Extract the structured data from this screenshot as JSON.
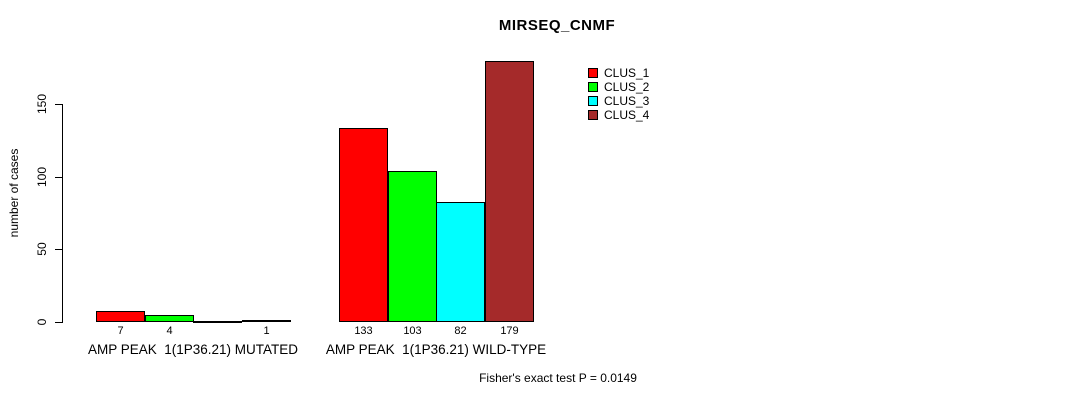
{
  "title": "MIRSEQ_CNMF",
  "footnote": "Fisher's exact test P = 0.0149",
  "chart_data": {
    "type": "bar",
    "title": "MIRSEQ_CNMF",
    "xlabel": "",
    "ylabel": "number of cases",
    "ylim": [
      0,
      180
    ],
    "yticks": [
      0,
      50,
      100,
      150
    ],
    "grid": false,
    "legend_position": "top-right",
    "categories": [
      "AMP PEAK  1(1P36.21) MUTATED",
      "AMP PEAK  1(1P36.21) WILD-TYPE"
    ],
    "series": [
      {
        "name": "CLUS_1",
        "color": "#ff0000",
        "values": [
          7,
          133
        ]
      },
      {
        "name": "CLUS_2",
        "color": "#00ff00",
        "values": [
          4,
          103
        ]
      },
      {
        "name": "CLUS_3",
        "color": "#00ffff",
        "values": [
          0,
          82
        ]
      },
      {
        "name": "CLUS_4",
        "color": "#a52a2a",
        "values": [
          1,
          179
        ]
      }
    ],
    "bar_value_labels": [
      [
        "7",
        "4",
        "",
        "1"
      ],
      [
        "133",
        "103",
        "82",
        "179"
      ]
    ],
    "annotation": "Fisher's exact test P = 0.0149"
  }
}
